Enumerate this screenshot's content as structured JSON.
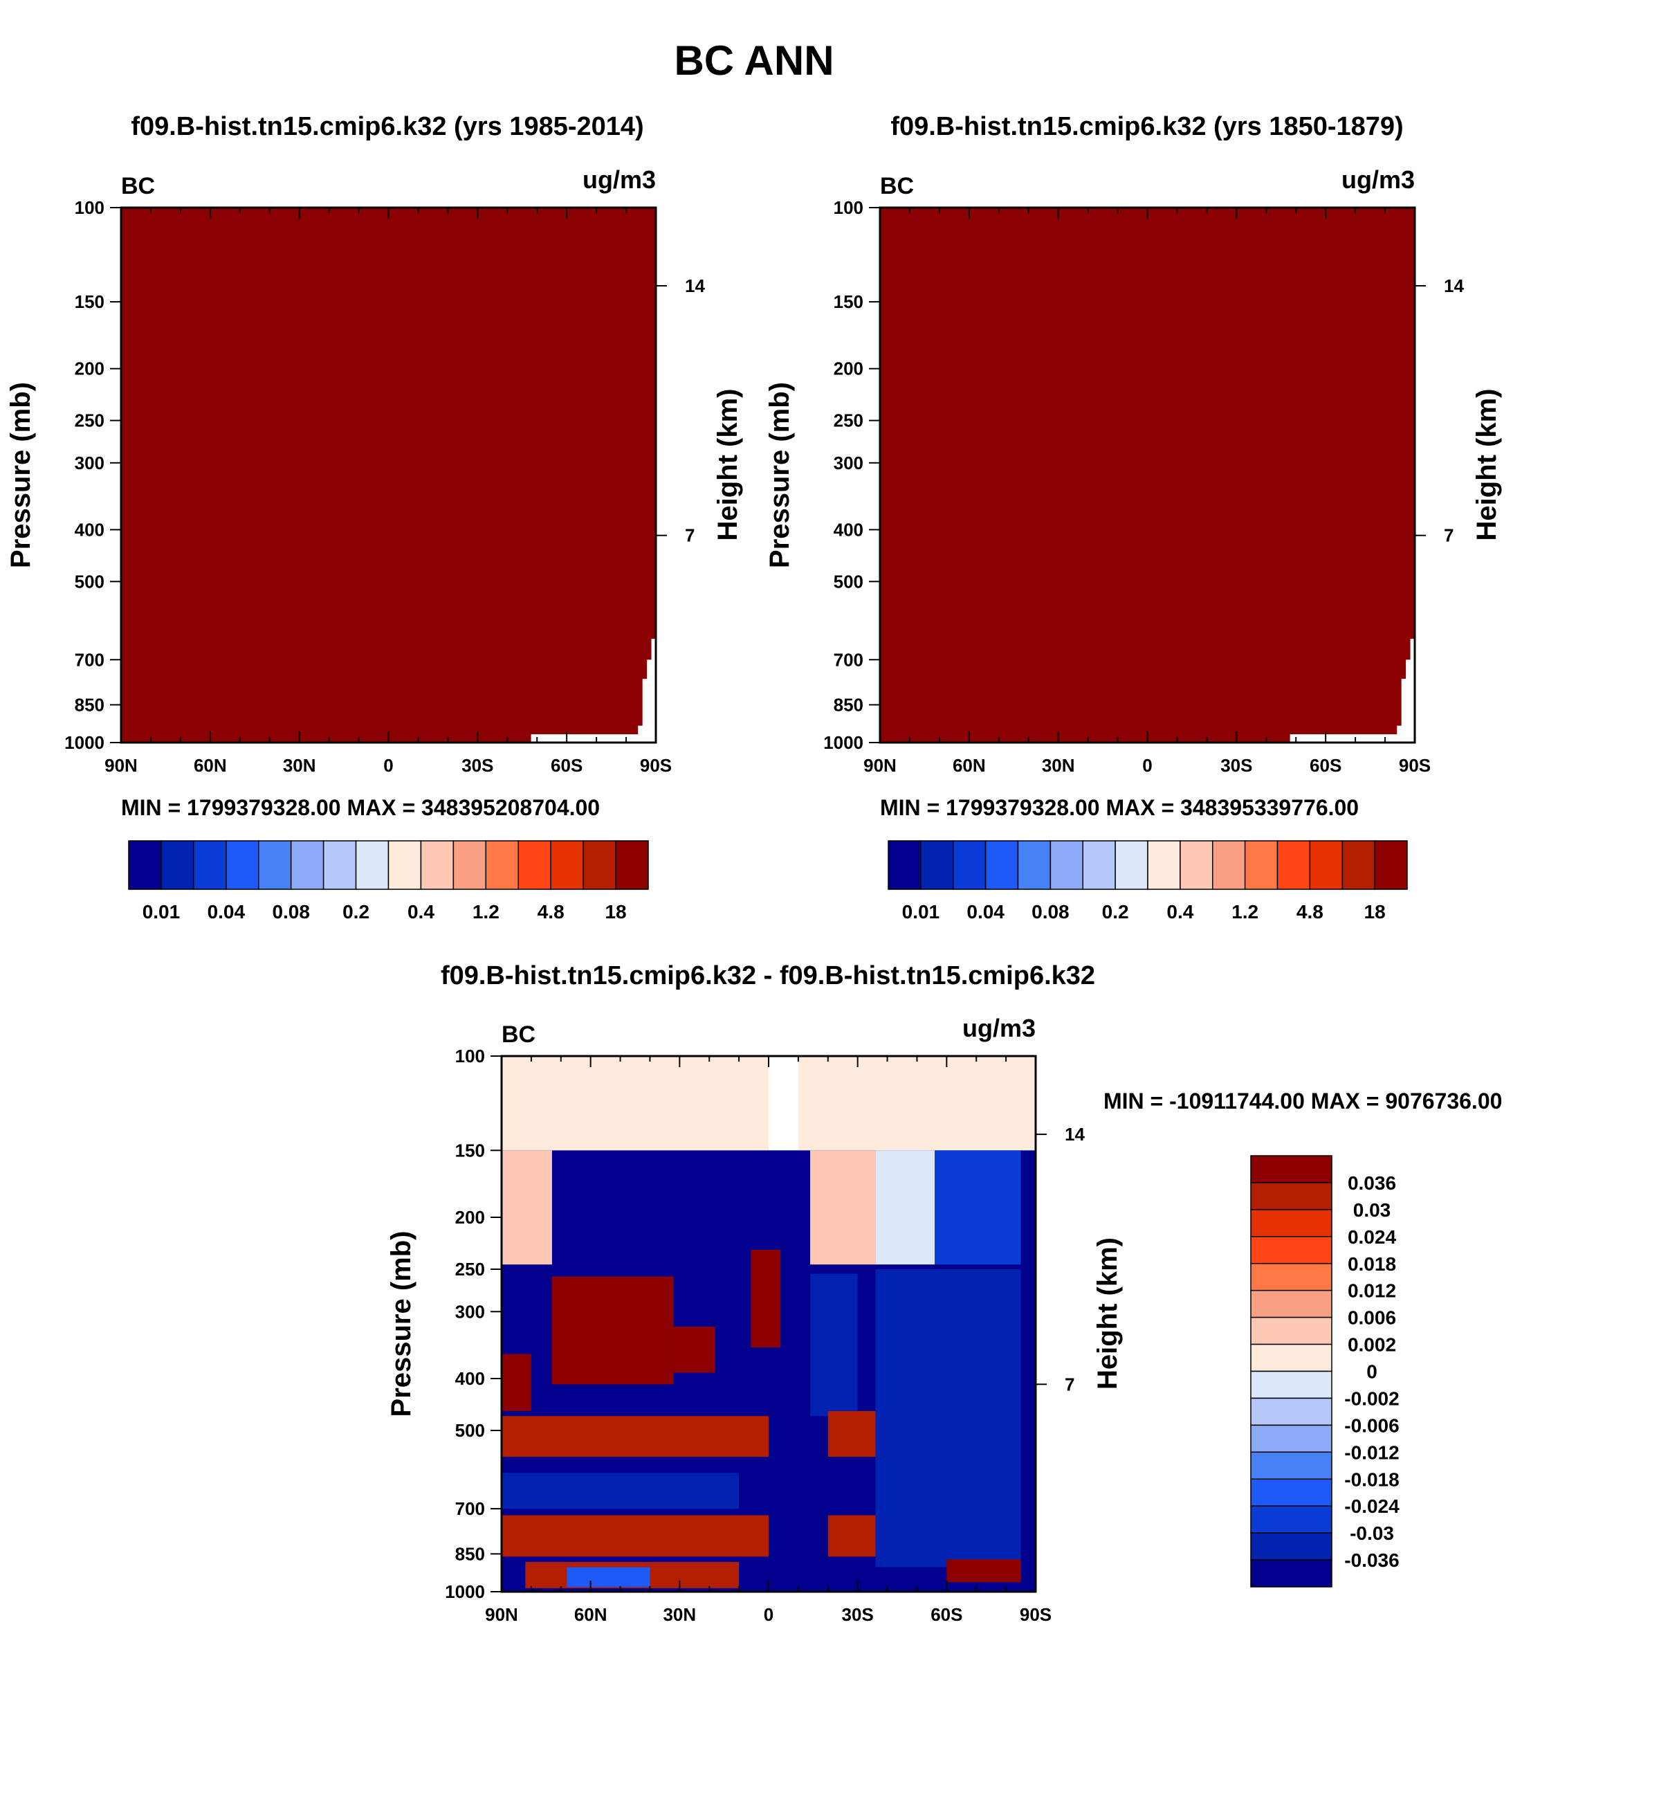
{
  "chart_data": {
    "type": "heatmap",
    "title": "BC ANN",
    "panels": [
      {
        "id": "p1",
        "title": "f09.B-hist.tn15.cmip6.k32 (yrs 1985-2014)",
        "variable": "BC",
        "units": "ug/m3",
        "ylabel": "Pressure (mb)",
        "ylabel_right": "Height (km)",
        "x_ticks": [
          "90N",
          "60N",
          "30N",
          "0",
          "30S",
          "60S",
          "90S"
        ],
        "y_ticks": [
          "100",
          "150",
          "200",
          "250",
          "300",
          "400",
          "500",
          "700",
          "850",
          "1000"
        ],
        "y_ticks_right": [
          "14",
          "7"
        ],
        "min_max": "MIN = 1799379328.00  MAX = 348395208704.00",
        "fill_color": "#8B0000",
        "colorbar_labels": [
          "0.01",
          "0.04",
          "0.08",
          "0.2",
          "0.4",
          "1.2",
          "4.8",
          "18"
        ]
      },
      {
        "id": "p2",
        "title": "f09.B-hist.tn15.cmip6.k32 (yrs 1850-1879)",
        "variable": "BC",
        "units": "ug/m3",
        "ylabel": "Pressure (mb)",
        "ylabel_right": "Height (km)",
        "x_ticks": [
          "90N",
          "60N",
          "30N",
          "0",
          "30S",
          "60S",
          "90S"
        ],
        "y_ticks": [
          "100",
          "150",
          "200",
          "250",
          "300",
          "400",
          "500",
          "700",
          "850",
          "1000"
        ],
        "y_ticks_right": [
          "14",
          "7"
        ],
        "min_max": "MIN = 1799379328.00  MAX = 348395339776.00",
        "fill_color": "#8B0000",
        "colorbar_labels": [
          "0.01",
          "0.04",
          "0.08",
          "0.2",
          "0.4",
          "1.2",
          "4.8",
          "18"
        ]
      },
      {
        "id": "p3",
        "title": "f09.B-hist.tn15.cmip6.k32 - f09.B-hist.tn15.cmip6.k32",
        "variable": "BC",
        "units": "ug/m3",
        "ylabel": "Pressure (mb)",
        "ylabel_right": "Height (km)",
        "x_ticks": [
          "90N",
          "60N",
          "30N",
          "0",
          "30S",
          "60S",
          "90S"
        ],
        "y_ticks": [
          "100",
          "150",
          "200",
          "250",
          "300",
          "400",
          "500",
          "700",
          "850",
          "1000"
        ],
        "y_ticks_right": [
          "14",
          "7"
        ],
        "min_max": "MIN = -10911744.00  MAX = 9076736.00",
        "colorbar_labels": [
          "0.036",
          "0.03",
          "0.024",
          "0.018",
          "0.012",
          "0.006",
          "0.002",
          "0",
          "-0.002",
          "-0.006",
          "-0.012",
          "-0.018",
          "-0.024",
          "-0.03",
          "-0.036"
        ]
      }
    ],
    "colormap_16": [
      "#00008C",
      "#0022B0",
      "#0A3CD6",
      "#1E5AF5",
      "#4682F5",
      "#8CAAF5",
      "#B4C8FA",
      "#DCE8FA",
      "#FFEBDC",
      "#FFC8B4",
      "#FAA082",
      "#FF7846",
      "#FF4614",
      "#E63200",
      "#B41E00",
      "#8C0000"
    ],
    "diff_regions": [
      {
        "lat": [
          90,
          0
        ],
        "p": [
          100,
          150
        ],
        "level": 8
      },
      {
        "lat": [
          -10,
          -90
        ],
        "p": [
          100,
          150
        ],
        "level": 8
      },
      {
        "lat": [
          90,
          -90
        ],
        "p": [
          150,
          1000
        ],
        "level": 0
      },
      {
        "lat": [
          90,
          73
        ],
        "p": [
          150,
          245
        ],
        "level": 9
      },
      {
        "lat": [
          -14,
          -36
        ],
        "p": [
          150,
          245
        ],
        "level": 9
      },
      {
        "lat": [
          -36,
          -56
        ],
        "p": [
          150,
          245
        ],
        "level": 7
      },
      {
        "lat": [
          -56,
          -85
        ],
        "p": [
          150,
          245
        ],
        "level": 2
      },
      {
        "lat": [
          -14,
          -30
        ],
        "p": [
          255,
          470
        ],
        "level": 1
      },
      {
        "lat": [
          -36,
          -85
        ],
        "p": [
          250,
          900
        ],
        "level": 1
      },
      {
        "lat": [
          73,
          32
        ],
        "p": [
          258,
          410
        ],
        "level": 15
      },
      {
        "lat": [
          32,
          18
        ],
        "p": [
          320,
          390
        ],
        "level": 15
      },
      {
        "lat": [
          6,
          -4
        ],
        "p": [
          230,
          350
        ],
        "level": 15
      },
      {
        "lat": [
          90,
          80
        ],
        "p": [
          360,
          460
        ],
        "level": 15
      },
      {
        "lat": [
          90,
          0
        ],
        "p": [
          470,
          560
        ],
        "level": 14
      },
      {
        "lat": [
          90,
          10
        ],
        "p": [
          600,
          700
        ],
        "level": 1
      },
      {
        "lat": [
          90,
          0
        ],
        "p": [
          720,
          860
        ],
        "level": 14
      },
      {
        "lat": [
          -20,
          -36
        ],
        "p": [
          460,
          560
        ],
        "level": 14
      },
      {
        "lat": [
          -20,
          -36
        ],
        "p": [
          720,
          860
        ],
        "level": 14
      },
      {
        "lat": [
          82,
          10
        ],
        "p": [
          880,
          985
        ],
        "level": 14
      },
      {
        "lat": [
          -60,
          -85
        ],
        "p": [
          870,
          960
        ],
        "level": 15
      },
      {
        "lat": [
          68,
          40
        ],
        "p": [
          900,
          980
        ],
        "level": 3
      },
      {
        "lat": [
          -20,
          -40
        ],
        "p": [
          900,
          980
        ],
        "level": 0
      }
    ]
  }
}
